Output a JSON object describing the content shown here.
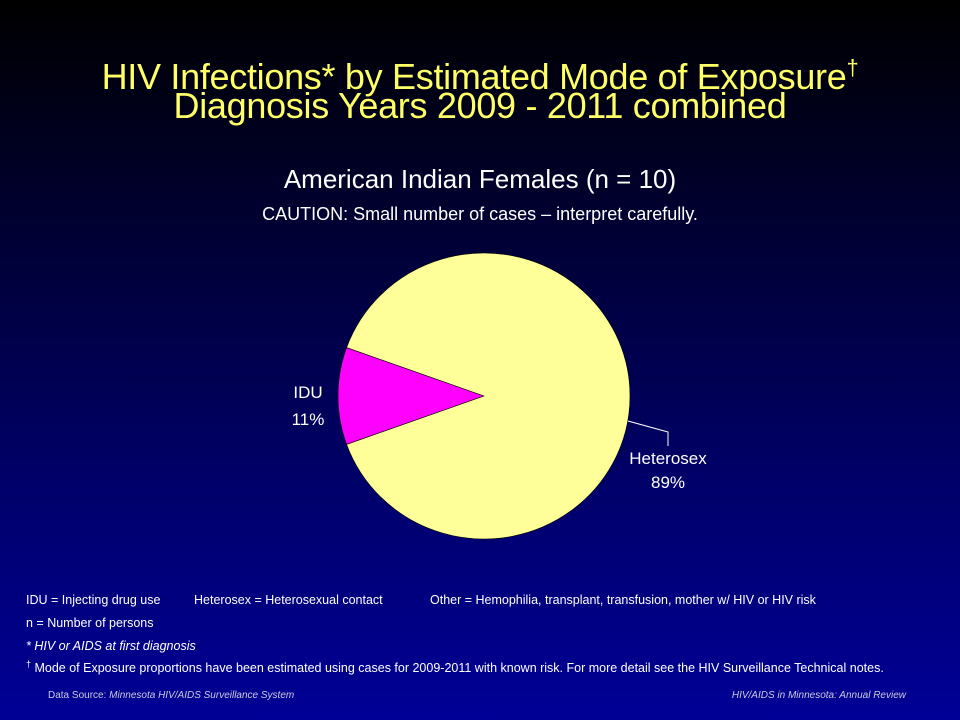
{
  "title": {
    "line1": "HIV Infections* by Estimated Mode of Exposure",
    "line1_mark": "†",
    "line2": "Diagnosis Years 2009 - 2011 combined"
  },
  "subtitle": "American Indian Females (n = 10)",
  "caution": "CAUTION: Small number of cases – interpret carefully.",
  "chart_data": {
    "type": "pie",
    "title": "American Indian Females (n = 10)",
    "slices": [
      {
        "label": "IDU",
        "value": 11,
        "display": "11%",
        "color": "#ff00ff"
      },
      {
        "label": "Heterosex",
        "value": 89,
        "display": "89%",
        "color": "#ffff99"
      }
    ],
    "legend": "none"
  },
  "notes": {
    "idu_def": "IDU = Injecting drug use",
    "hetero_def": "Heterosex = Heterosexual contact",
    "other_def": "Other = Hemophilia, transplant, transfusion, mother w/ HIV or HIV risk",
    "n_def": "n = Number of persons",
    "hiv_def": "* HIV or AIDS at first diagnosis",
    "mode_mark": "†",
    "mode_def": " Mode of Exposure proportions have been estimated using cases for 2009-2011  with known risk. For more detail see the HIV Surveillance Technical notes."
  },
  "footer": {
    "left_prefix": "Data Source: ",
    "left_source": "Minnesota HIV/AIDS Surveillance  System",
    "right": "HIV/AIDS in Minnesota: Annual Review"
  }
}
